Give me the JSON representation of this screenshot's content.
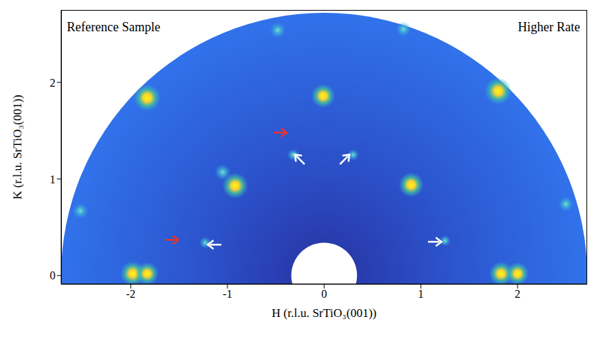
{
  "chart_data": {
    "type": "scatter",
    "title": null,
    "x_label": "H (r.l.u. SrTiO₃(001))",
    "y_label": "K (r.l.u. SrTiO₃(001))",
    "xlim": [
      -2.72,
      2.72
    ],
    "ylim": [
      -0.09,
      2.75
    ],
    "xticks": [
      -2,
      -1,
      0,
      1,
      2
    ],
    "yticks": [
      0,
      1,
      2
    ],
    "grid": false,
    "q_range": [
      0.34,
      2.72
    ],
    "divider_x": 0,
    "series": [
      {
        "name": "Reference Sample",
        "x": [
          -1.83,
          -1.98,
          -1.83,
          -0.92,
          -1.05,
          -0.01,
          -0.48,
          -2.52,
          -1.23,
          -0.32
        ],
        "y": [
          1.84,
          0.02,
          0.02,
          0.93,
          1.07,
          1.86,
          2.54,
          0.67,
          0.34,
          1.25
        ],
        "intensity": [
          1.0,
          0.9,
          0.8,
          0.95,
          0.45,
          0.85,
          0.45,
          0.45,
          0.25,
          0.25
        ]
      },
      {
        "name": "Higher Rate",
        "x": [
          1.8,
          1.83,
          2.0,
          0.9,
          0.82,
          2.5,
          1.25,
          0.3
        ],
        "y": [
          1.91,
          0.02,
          0.02,
          0.94,
          2.55,
          0.74,
          0.36,
          1.25
        ],
        "intensity": [
          1.0,
          0.85,
          0.8,
          0.9,
          0.4,
          0.4,
          0.22,
          0.22
        ]
      }
    ],
    "arrows": [
      {
        "x": -0.46,
        "y": 1.48,
        "direction": "right",
        "color": "#e8322a"
      },
      {
        "x": -1.58,
        "y": 0.37,
        "direction": "right",
        "color": "#e8322a"
      },
      {
        "x": -0.25,
        "y": 1.2,
        "direction": "up-left",
        "color": "#ffffff"
      },
      {
        "x": 0.21,
        "y": 1.2,
        "direction": "up-right",
        "color": "#ffffff"
      },
      {
        "x": -1.13,
        "y": 0.32,
        "direction": "left",
        "color": "#ffffff"
      },
      {
        "x": 1.14,
        "y": 0.35,
        "direction": "right",
        "color": "#ffffff"
      }
    ]
  }
}
